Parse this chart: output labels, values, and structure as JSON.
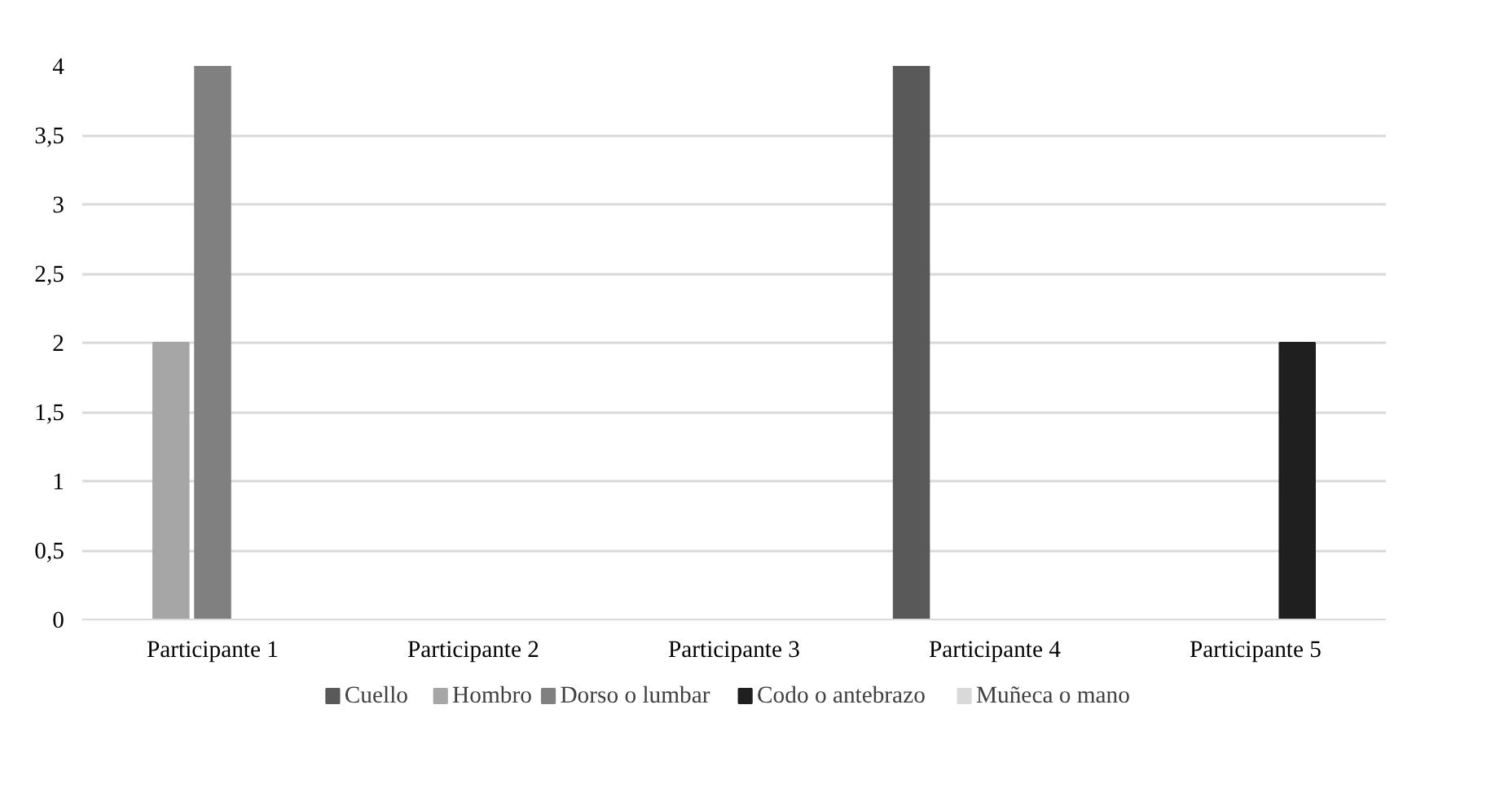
{
  "chart_data": {
    "type": "bar",
    "categories": [
      "Participante 1",
      "Participante 2",
      "Participante 3",
      "Participante 4",
      "Participante 5"
    ],
    "series": [
      {
        "name": "Cuello",
        "color": "#595959",
        "values": [
          0,
          0,
          0,
          4,
          0
        ]
      },
      {
        "name": "Hombro",
        "color": "#a6a6a6",
        "values": [
          2,
          0,
          0,
          0,
          0
        ]
      },
      {
        "name": "Dorso o lumbar",
        "color": "#808080",
        "values": [
          4,
          0,
          0,
          0,
          0
        ]
      },
      {
        "name": "Codo o antebrazo",
        "color": "#1f1f1f",
        "values": [
          0,
          0,
          0,
          0,
          2
        ]
      },
      {
        "name": "Muñeca o mano",
        "color": "#d9d9d9",
        "values": [
          0,
          0,
          0,
          0,
          0
        ]
      }
    ],
    "ylim": [
      0,
      4
    ],
    "yticks": [
      0,
      {
        "value": 0.5,
        "label": "0,5"
      },
      1,
      {
        "value": 1.5,
        "label": "1,5"
      },
      2,
      {
        "value": 2.5,
        "label": "2,5"
      },
      3,
      {
        "value": 3.5,
        "label": "3,5"
      },
      4
    ],
    "grid": "y",
    "legend": "bottom"
  }
}
